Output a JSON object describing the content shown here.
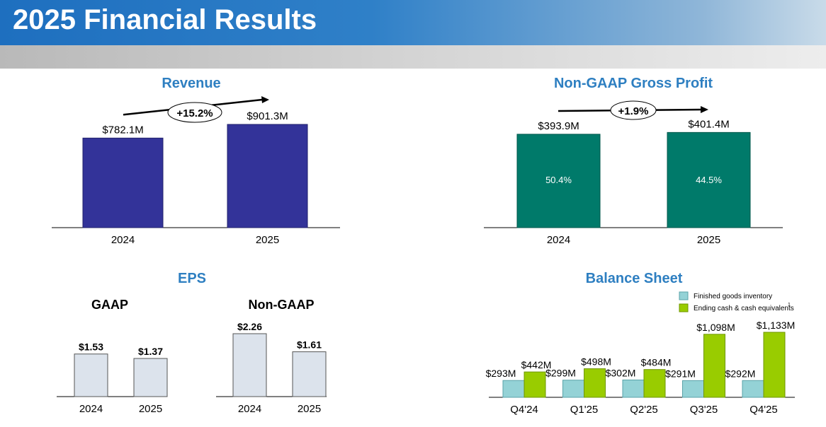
{
  "header": {
    "title": "2025 Financial Results"
  },
  "colors": {
    "revenue": "#333399",
    "gross_profit": "#007a6a",
    "eps": "#dce3ec",
    "inventory": "#94d2d6",
    "cash": "#99cc00",
    "title_blue": "#2e7fc1"
  },
  "chart_data": [
    {
      "id": "revenue",
      "type": "bar",
      "title": "Revenue",
      "categories": [
        "2024",
        "2025"
      ],
      "values": [
        782.1,
        901.3
      ],
      "value_labels": [
        "$782.1M",
        "$901.3M"
      ],
      "growth_label": "+15.2%",
      "ylim": [
        0,
        1000
      ]
    },
    {
      "id": "gross_profit",
      "type": "bar",
      "title": "Non-GAAP Gross Profit",
      "categories": [
        "2024",
        "2025"
      ],
      "values": [
        393.9,
        401.4
      ],
      "value_labels": [
        "$393.9M",
        "$401.4M"
      ],
      "inner_labels": [
        "50.4%",
        "44.5%"
      ],
      "growth_label": "+1.9%",
      "ylim": [
        0,
        480
      ]
    },
    {
      "id": "eps",
      "type": "bar",
      "title": "EPS",
      "groups": [
        {
          "name": "GAAP",
          "categories": [
            "2024",
            "2025"
          ],
          "values": [
            1.53,
            1.37
          ],
          "value_labels": [
            "$1.53",
            "$1.37"
          ]
        },
        {
          "name": "Non-GAAP",
          "categories": [
            "2024",
            "2025"
          ],
          "values": [
            2.26,
            1.61
          ],
          "value_labels": [
            "$2.26",
            "$1.61"
          ]
        }
      ]
    },
    {
      "id": "balance",
      "type": "bar",
      "title": "Balance Sheet",
      "categories": [
        "Q4'24",
        "Q1'25",
        "Q2'25",
        "Q3'25",
        "Q4'25"
      ],
      "series": [
        {
          "name": "Finished goods inventory",
          "values": [
            293,
            299,
            302,
            291,
            292
          ],
          "value_labels": [
            "$293M",
            "$299M",
            "$302M",
            "$291M",
            "$292M"
          ]
        },
        {
          "name": "Ending cash & cash equivalents",
          "values": [
            442,
            498,
            484,
            1098,
            1133
          ],
          "value_labels": [
            "$442M",
            "$498M",
            "$484M",
            "$1,098M",
            "$1,133M"
          ]
        }
      ],
      "legend_superscript": "1",
      "ylim": [
        0,
        1200
      ]
    }
  ]
}
